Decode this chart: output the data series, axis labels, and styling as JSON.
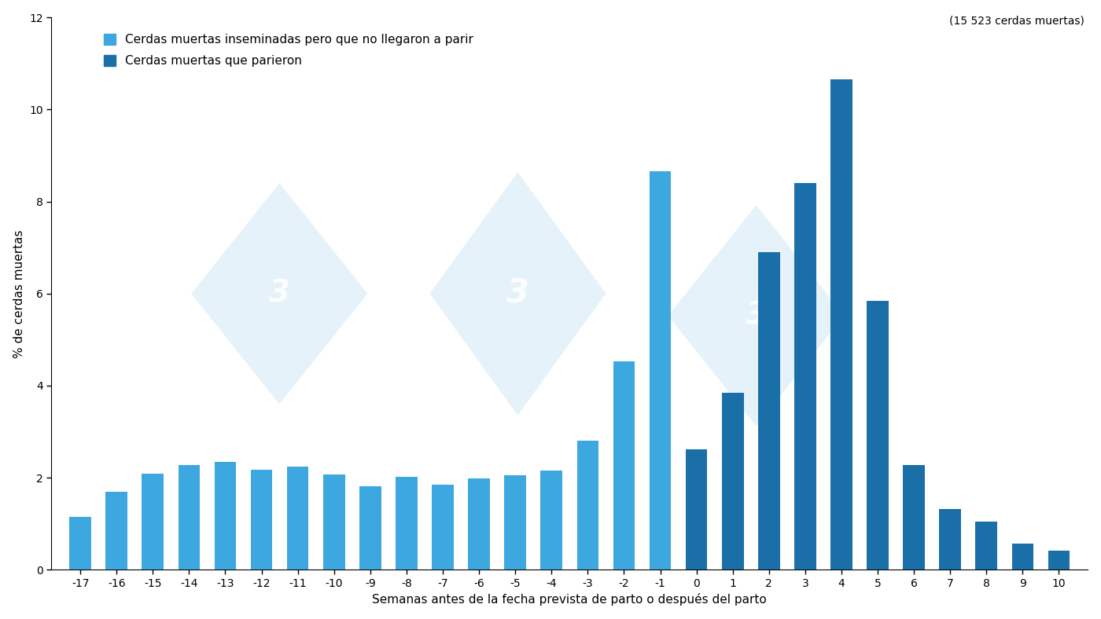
{
  "weeks": [
    -17,
    -16,
    -15,
    -14,
    -13,
    -12,
    -11,
    -10,
    -9,
    -8,
    -7,
    -6,
    -5,
    -4,
    -3,
    -2,
    -1,
    0,
    1,
    2,
    3,
    4,
    5,
    6,
    7,
    8,
    9,
    10
  ],
  "values": [
    1.15,
    1.7,
    2.08,
    2.28,
    2.35,
    2.18,
    2.25,
    2.07,
    1.82,
    2.02,
    1.85,
    1.98,
    2.05,
    2.15,
    2.8,
    4.53,
    8.65,
    2.62,
    3.85,
    6.9,
    8.4,
    10.65,
    5.85,
    2.28,
    1.32,
    1.05,
    0.57,
    0.42
  ],
  "light_blue_indices": [
    0,
    1,
    2,
    3,
    4,
    5,
    6,
    7,
    8,
    9,
    10,
    11,
    12,
    13,
    14,
    15,
    16
  ],
  "dark_blue_indices": [
    17,
    18,
    19,
    20,
    21,
    22,
    23,
    24,
    25,
    26,
    27
  ],
  "light_blue_color": "#3DA8E0",
  "dark_blue_color": "#1B6FA8",
  "background_color": "#FFFFFF",
  "ylabel": "% de cerdas muertas",
  "xlabel": "Semanas antes de la fecha prevista de parto o después del parto",
  "ylim": [
    0,
    12
  ],
  "yticks": [
    0,
    2,
    4,
    6,
    8,
    10,
    12
  ],
  "legend_label_light": "Cerdas muertas inseminadas pero que no llegaron a parir",
  "legend_label_dark": "Cerdas muertas que parieron",
  "annotation": "(15 523 cerdas muertas)",
  "bar_width": 0.6,
  "axis_fontsize": 11,
  "tick_fontsize": 10,
  "legend_fontsize": 11,
  "annotation_fontsize": 10,
  "watermark_color": "#D0E8F5",
  "watermark_alpha": 0.55,
  "watermark_text_color": "#FFFFFF",
  "watermark_text_alpha": 0.85
}
